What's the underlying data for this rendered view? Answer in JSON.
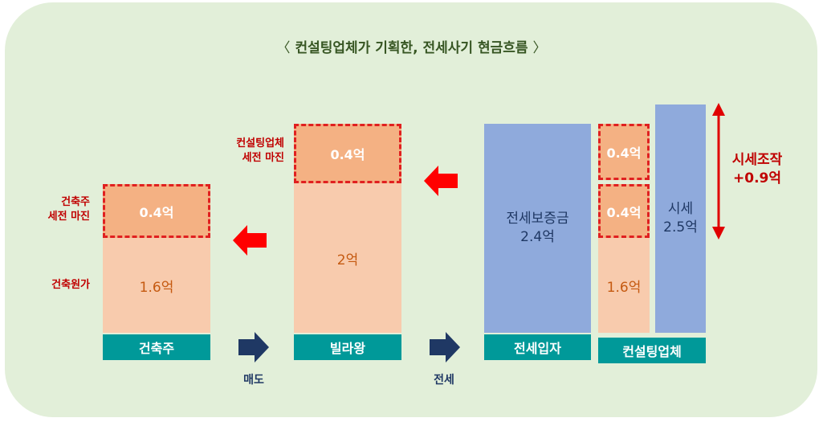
{
  "title": "컨설팅업체가 기획한, 전세사기 현금흐름",
  "title_brackets": {
    "open": "〈",
    "close": "〉"
  },
  "builder": {
    "base_label": "건축주",
    "cost_label": "건축원가",
    "cost_value": "1.6억",
    "margin_label_line1": "건축주",
    "margin_label_line2": "세전 마진",
    "margin_value": "0.4억"
  },
  "transfer1": "매도",
  "villa_king": {
    "base_label": "빌라왕",
    "main_value": "2억",
    "margin_label_line1": "컨설팅업체",
    "margin_label_line2": "세전 마진",
    "margin_value": "0.4억"
  },
  "transfer2": "전세",
  "tenant": {
    "base_label": "전세입자",
    "deposit_label": "전세보증금",
    "deposit_value": "2.4억"
  },
  "consulting": {
    "base_label": "컨설팅업체",
    "cost_value": "1.6억",
    "margin_value_1": "0.4억",
    "margin_value_2": "0.4억",
    "market_label": "시세",
    "market_value": "2.5억"
  },
  "manipulation": {
    "label": "시세조작",
    "value": "+0.9억"
  },
  "colors": {
    "background": "#e2efd9",
    "base": "#009999",
    "light_orange": "#f8cbad",
    "mid_orange": "#f4b183",
    "blue": "#8faadc",
    "red": "#e02020",
    "navy": "#1f3864"
  }
}
